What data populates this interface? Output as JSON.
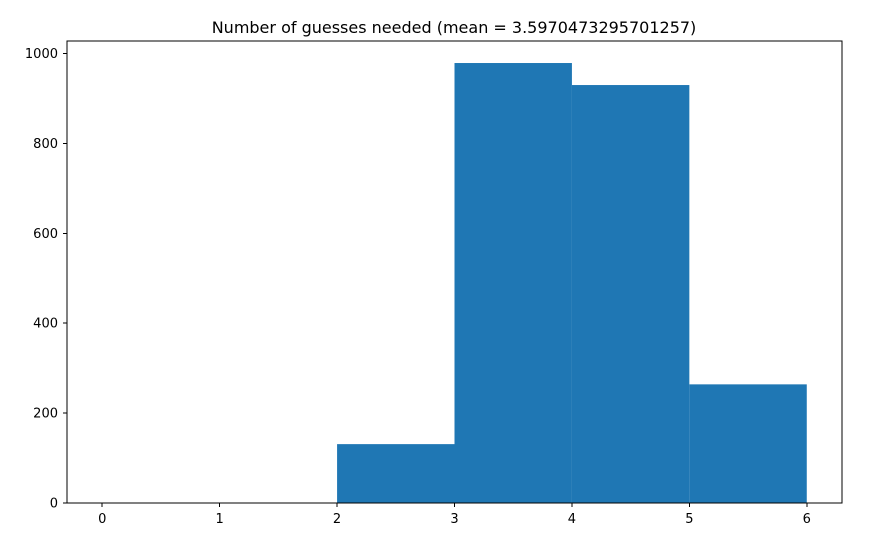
{
  "chart_data": {
    "type": "bar",
    "title": "Number of guesses needed (mean = 3.5970473295701257)",
    "xlabel": "",
    "ylabel": "",
    "bins": [
      {
        "start": 0,
        "end": 1,
        "value": 0
      },
      {
        "start": 1,
        "end": 2,
        "value": 0
      },
      {
        "start": 2,
        "end": 3,
        "value": 131
      },
      {
        "start": 3,
        "end": 4,
        "value": 979
      },
      {
        "start": 4,
        "end": 5,
        "value": 930
      },
      {
        "start": 5,
        "end": 6,
        "value": 264
      }
    ],
    "xlim": [
      -0.3,
      6.3
    ],
    "ylim": [
      0,
      1028
    ],
    "x_ticks": [
      {
        "value": 0,
        "label": "0"
      },
      {
        "value": 1,
        "label": "1"
      },
      {
        "value": 2,
        "label": "2"
      },
      {
        "value": 3,
        "label": "3"
      },
      {
        "value": 4,
        "label": "4"
      },
      {
        "value": 5,
        "label": "5"
      },
      {
        "value": 6,
        "label": "6"
      }
    ],
    "y_ticks": [
      {
        "value": 0,
        "label": "0"
      },
      {
        "value": 200,
        "label": "200"
      },
      {
        "value": 400,
        "label": "400"
      },
      {
        "value": 600,
        "label": "600"
      },
      {
        "value": 800,
        "label": "800"
      },
      {
        "value": 1000,
        "label": "1000"
      }
    ],
    "grid": false,
    "legend": "none",
    "colors": {
      "bar": "#1f77b4",
      "axis": "#000000",
      "background": "#ffffff"
    }
  }
}
